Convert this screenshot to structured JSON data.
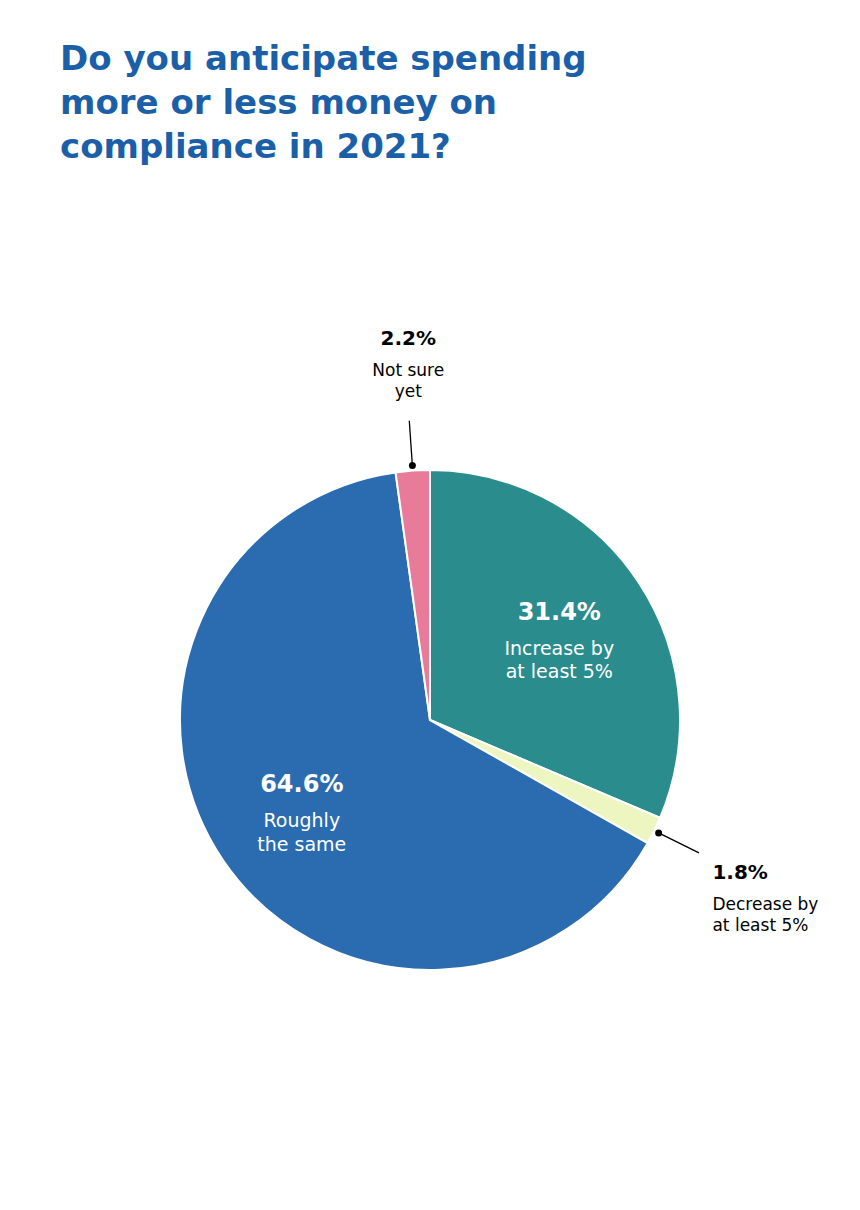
{
  "chart_data": {
    "type": "pie",
    "title": "Do you anticipate spending\nmore or less money on\ncompliance in 2021?",
    "categories": [
      "Increase by\nat least 5%",
      "Decrease by\nat least 5%",
      "Roughly\nthe same",
      "Not sure\nyet"
    ],
    "values": [
      31.4,
      1.8,
      64.6,
      2.2
    ],
    "value_labels": [
      "31.4%",
      "1.8%",
      "64.6%",
      "2.2%"
    ],
    "colors": [
      "#2A8C8C",
      "#EDF5C0",
      "#2B6CB0",
      "#E87B9A"
    ],
    "data_labels": true
  }
}
